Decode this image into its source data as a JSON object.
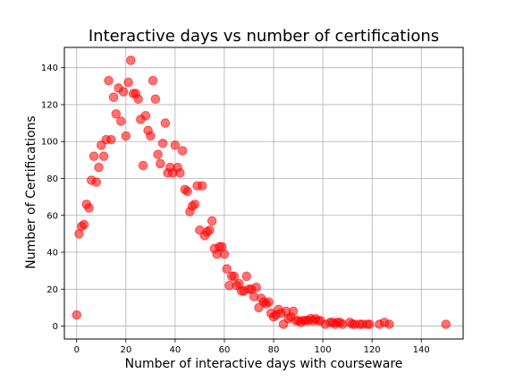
{
  "chart_data": {
    "type": "scatter",
    "title": "Interactive days vs number of certifications",
    "xlabel": "Number of interactive days with courseware",
    "ylabel": "Number of Certifications",
    "xlim": [
      -5,
      157
    ],
    "ylim": [
      -7,
      151
    ],
    "xticks": [
      0,
      20,
      40,
      60,
      80,
      100,
      120,
      140
    ],
    "yticks": [
      0,
      20,
      40,
      60,
      80,
      100,
      120,
      140
    ],
    "grid": true,
    "marker_color": "#ff0000",
    "marker_alpha": 0.55,
    "series": [
      {
        "points": [
          [
            0,
            6
          ],
          [
            1,
            50
          ],
          [
            2,
            54
          ],
          [
            3,
            55
          ],
          [
            4,
            66
          ],
          [
            5,
            64
          ],
          [
            6,
            79
          ],
          [
            7,
            92
          ],
          [
            8,
            78
          ],
          [
            9,
            86
          ],
          [
            10,
            98
          ],
          [
            11,
            92
          ],
          [
            12,
            101
          ],
          [
            13,
            133
          ],
          [
            14,
            101
          ],
          [
            15,
            124
          ],
          [
            16,
            115
          ],
          [
            17,
            129
          ],
          [
            18,
            111
          ],
          [
            19,
            127
          ],
          [
            20,
            103
          ],
          [
            21,
            132
          ],
          [
            22,
            144
          ],
          [
            23,
            126
          ],
          [
            24,
            126
          ],
          [
            25,
            123
          ],
          [
            26,
            112
          ],
          [
            27,
            87
          ],
          [
            28,
            114
          ],
          [
            29,
            106
          ],
          [
            30,
            103
          ],
          [
            31,
            133
          ],
          [
            32,
            123
          ],
          [
            33,
            93
          ],
          [
            34,
            88
          ],
          [
            35,
            99
          ],
          [
            36,
            110
          ],
          [
            37,
            83
          ],
          [
            38,
            86
          ],
          [
            39,
            83
          ],
          [
            40,
            98
          ],
          [
            41,
            86
          ],
          [
            42,
            83
          ],
          [
            43,
            95
          ],
          [
            44,
            74
          ],
          [
            45,
            73
          ],
          [
            46,
            62
          ],
          [
            47,
            65
          ],
          [
            48,
            66
          ],
          [
            49,
            76
          ],
          [
            50,
            52
          ],
          [
            51,
            76
          ],
          [
            52,
            49
          ],
          [
            53,
            51
          ],
          [
            54,
            52
          ],
          [
            55,
            57
          ],
          [
            56,
            42
          ],
          [
            57,
            39
          ],
          [
            58,
            43
          ],
          [
            59,
            43
          ],
          [
            60,
            39
          ],
          [
            61,
            31
          ],
          [
            62,
            22
          ],
          [
            63,
            27
          ],
          [
            64,
            27
          ],
          [
            65,
            22
          ],
          [
            66,
            23
          ],
          [
            67,
            19
          ],
          [
            68,
            19
          ],
          [
            69,
            27
          ],
          [
            70,
            20
          ],
          [
            71,
            20
          ],
          [
            72,
            16
          ],
          [
            73,
            21
          ],
          [
            74,
            10
          ],
          [
            75,
            15
          ],
          [
            76,
            13
          ],
          [
            77,
            12
          ],
          [
            78,
            13
          ],
          [
            79,
            7
          ],
          [
            80,
            5
          ],
          [
            81,
            6
          ],
          [
            82,
            9
          ],
          [
            83,
            7
          ],
          [
            84,
            1
          ],
          [
            85,
            8
          ],
          [
            86,
            4
          ],
          [
            87,
            5
          ],
          [
            88,
            8
          ],
          [
            89,
            3
          ],
          [
            90,
            3
          ],
          [
            91,
            2
          ],
          [
            92,
            3
          ],
          [
            93,
            3
          ],
          [
            94,
            3
          ],
          [
            95,
            4
          ],
          [
            96,
            3
          ],
          [
            97,
            4
          ],
          [
            98,
            3
          ],
          [
            99,
            3
          ],
          [
            101,
            1
          ],
          [
            103,
            2
          ],
          [
            104,
            2
          ],
          [
            105,
            1
          ],
          [
            106,
            2
          ],
          [
            107,
            2
          ],
          [
            108,
            1
          ],
          [
            111,
            2
          ],
          [
            112,
            1
          ],
          [
            113,
            1
          ],
          [
            115,
            1
          ],
          [
            116,
            1
          ],
          [
            118,
            1
          ],
          [
            119,
            1
          ],
          [
            123,
            1
          ],
          [
            125,
            2
          ],
          [
            127,
            1
          ],
          [
            150,
            1
          ]
        ]
      }
    ]
  }
}
